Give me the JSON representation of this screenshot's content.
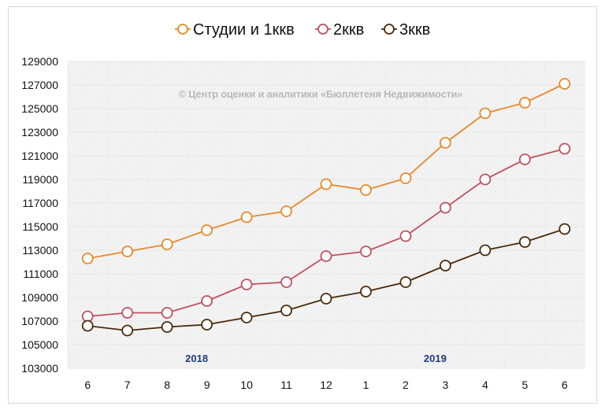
{
  "chart_data": {
    "type": "line",
    "title": "",
    "xlabel": "",
    "ylabel": "",
    "categories": [
      "6",
      "7",
      "8",
      "9",
      "10",
      "11",
      "12",
      "1",
      "2",
      "3",
      "4",
      "5",
      "6"
    ],
    "year_labels": [
      {
        "label": "2018",
        "category_index": 3
      },
      {
        "label": "2019",
        "category_index": 9
      }
    ],
    "ylim": [
      103000,
      129000
    ],
    "ytick_step": 2000,
    "yticks": [
      "103000",
      "105000",
      "107000",
      "109000",
      "111000",
      "113000",
      "115000",
      "117000",
      "119000",
      "121000",
      "123000",
      "125000",
      "127000",
      "129000"
    ],
    "grid": "on",
    "legend_position": "top",
    "watermark": "© Центр оценки и аналитики «Бюллетеня Недвижимости»",
    "series": [
      {
        "name": "Студии и 1ккв",
        "color": "#E8892A",
        "values": [
          112300,
          112900,
          113500,
          114700,
          115800,
          116300,
          118600,
          118100,
          119100,
          122100,
          124600,
          125500,
          127100
        ]
      },
      {
        "name": "2ккв",
        "color": "#C0505F",
        "values": [
          107400,
          107700,
          107700,
          108700,
          110100,
          110300,
          112500,
          112900,
          114200,
          116600,
          119000,
          120700,
          121600
        ]
      },
      {
        "name": "3ккв",
        "color": "#4A2A0A",
        "values": [
          106600,
          106200,
          106500,
          106700,
          107300,
          107900,
          108900,
          109500,
          110300,
          111700,
          113000,
          113700,
          114800
        ]
      }
    ]
  }
}
